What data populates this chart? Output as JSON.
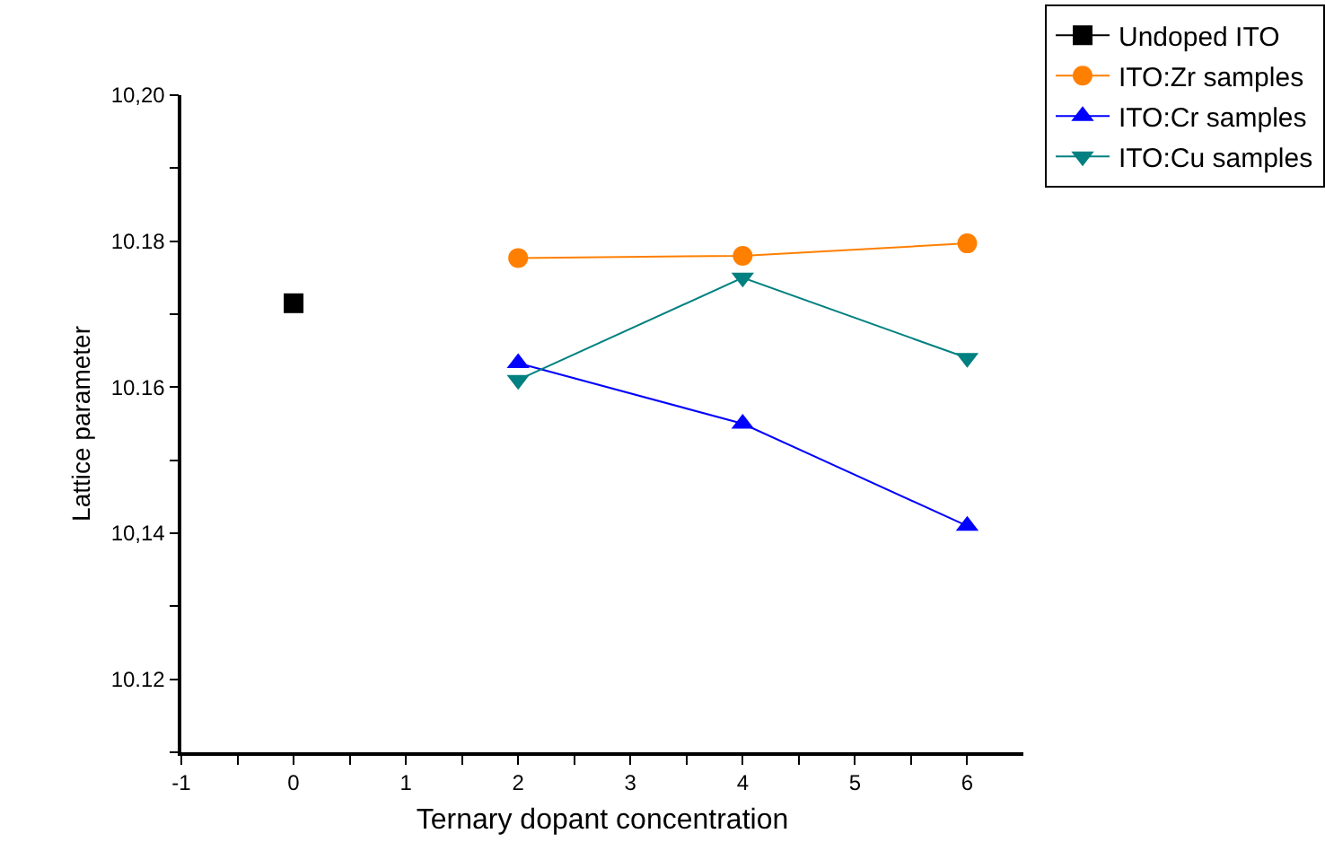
{
  "chart_data": {
    "type": "line",
    "xlabel": "Ternary dopant concentration",
    "ylabel": "Lattice parameter",
    "xlim": [
      -1,
      6.5
    ],
    "xticks": [
      -1,
      {
        "value": -0.5,
        "label": null
      },
      0,
      {
        "value": 0.5,
        "label": null
      },
      1,
      {
        "value": 1.5,
        "label": null
      },
      2,
      {
        "value": 2.5,
        "label": null
      },
      3,
      {
        "value": 3.5,
        "label": null
      },
      4,
      {
        "value": 4.5,
        "label": null
      },
      5,
      {
        "value": 5.5,
        "label": null
      },
      6
    ],
    "ylim": [
      10.11,
      10.2
    ],
    "yticks": [
      {
        "value": 10.11,
        "label": null
      },
      {
        "value": 10.12,
        "label": "10.12"
      },
      {
        "value": 10.13,
        "label": null
      },
      {
        "value": 10.14,
        "label": "10,14"
      },
      {
        "value": 10.15,
        "label": null
      },
      {
        "value": 10.16,
        "label": "10.16"
      },
      {
        "value": 10.17,
        "label": null
      },
      {
        "value": 10.18,
        "label": "10.18"
      },
      {
        "value": 10.19,
        "label": null
      },
      {
        "value": 10.2,
        "label": "10,20"
      }
    ],
    "legend": "top right",
    "series": [
      {
        "name": "Undoped ITO",
        "color": "#000000",
        "marker": "square",
        "x": [
          0
        ],
        "values": [
          10.1715
        ]
      },
      {
        "name": "ITO:Zr samples",
        "color": "#ff7f00",
        "marker": "circle",
        "x": [
          2,
          4,
          6
        ],
        "values": [
          10.1777,
          10.178,
          10.1797
        ]
      },
      {
        "name": "ITO:Cr samples",
        "color": "#0000ff",
        "marker": "triangle",
        "x": [
          2,
          4,
          6
        ],
        "values": [
          10.1633,
          10.155,
          10.141
        ]
      },
      {
        "name": "ITO:Cu samples",
        "color": "#008080",
        "marker": "triangle-down",
        "x": [
          2,
          4,
          6
        ],
        "values": [
          10.161,
          10.175,
          10.164
        ]
      }
    ]
  }
}
